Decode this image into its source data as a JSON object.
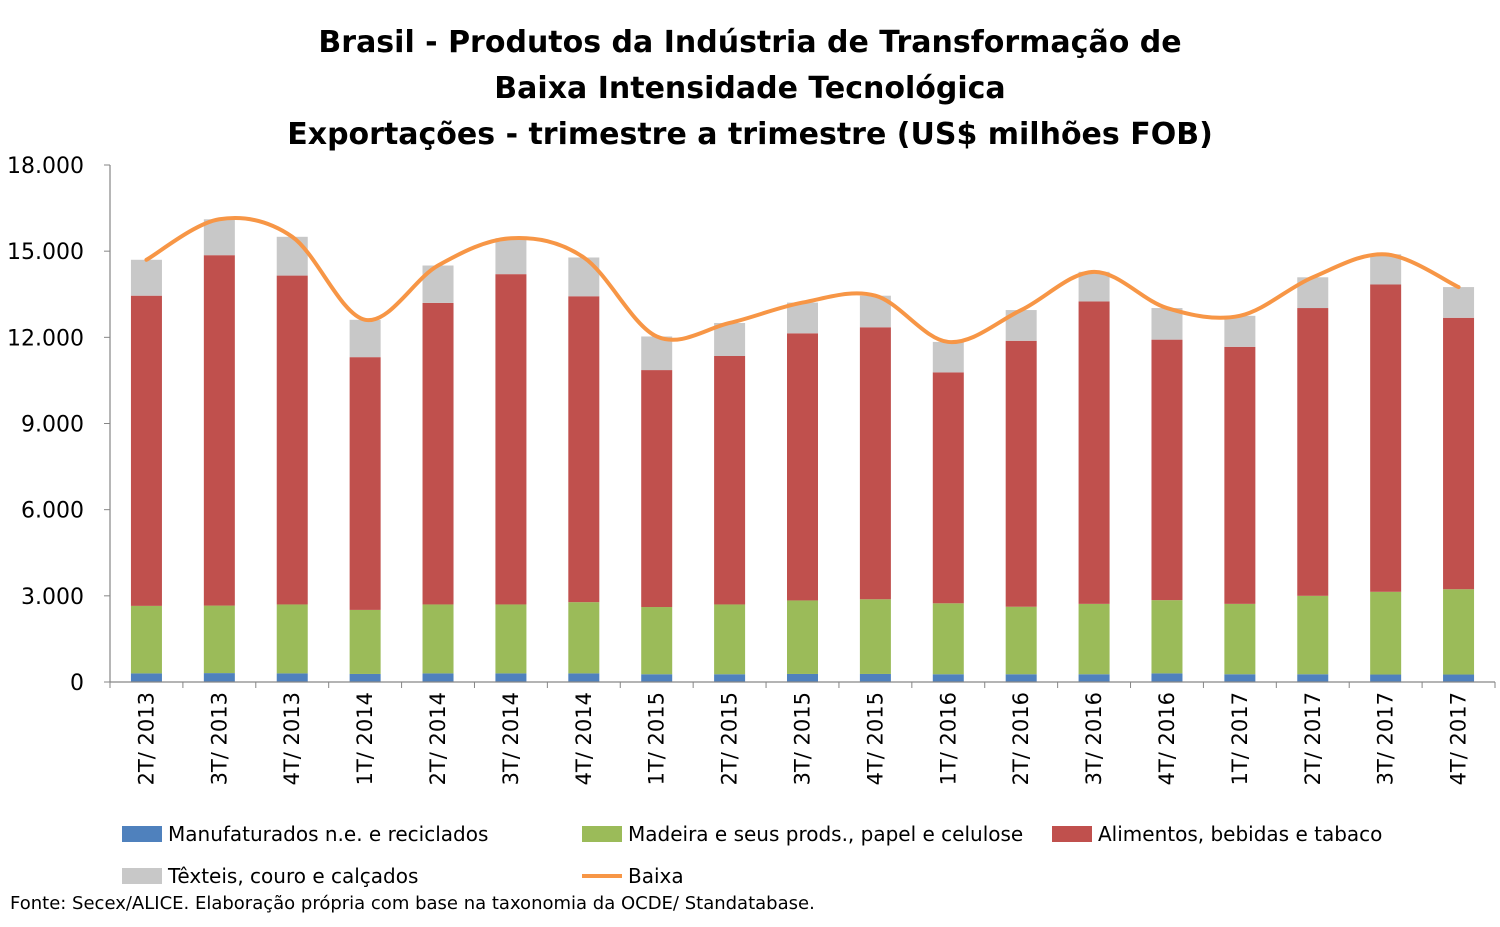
{
  "chart_data": {
    "type": "bar",
    "stacked": true,
    "title_lines": [
      "Brasil - Produtos da Indústria de Transformação de",
      "Baixa Intensidade Tecnológica",
      "Exportações - trimestre a trimestre (US$ milhões FOB)"
    ],
    "categories": [
      "2T/ 2013",
      "3T/ 2013",
      "4T/ 2013",
      "1T/ 2014",
      "2T/ 2014",
      "3T/ 2014",
      "4T/ 2014",
      "1T/ 2015",
      "2T/ 2015",
      "3T/ 2015",
      "4T/ 2015",
      "1T/ 2016",
      "2T/ 2016",
      "3T/ 2016",
      "4T/ 2016",
      "1T/ 2017",
      "2T/ 2017",
      "3T/ 2017",
      "4T/ 2017"
    ],
    "ylim": [
      0,
      18000
    ],
    "yticks": [
      0,
      3000,
      6000,
      9000,
      12000,
      15000,
      18000
    ],
    "ytick_labels": [
      "0",
      "3.000",
      "6.000",
      "9.000",
      "12.000",
      "15.000",
      "18.000"
    ],
    "series": [
      {
        "name": "Manufaturados n.e. e reciclados",
        "color": "#4f81bd",
        "kind": "bar",
        "values": [
          300,
          310,
          300,
          280,
          300,
          300,
          300,
          270,
          270,
          280,
          280,
          270,
          270,
          270,
          300,
          270,
          270,
          260,
          260
        ]
      },
      {
        "name": "Madeira e seus prods., papel e celulose",
        "color": "#9bbb59",
        "kind": "bar",
        "values": [
          2350,
          2350,
          2400,
          2230,
          2400,
          2400,
          2480,
          2340,
          2430,
          2560,
          2600,
          2470,
          2350,
          2450,
          2550,
          2450,
          2730,
          2880,
          2970
        ]
      },
      {
        "name": "Alimentos, bebidas e tabaco",
        "color": "#c0504d",
        "kind": "bar",
        "values": [
          10800,
          12200,
          11450,
          8800,
          10500,
          11500,
          10650,
          8250,
          8650,
          9300,
          9470,
          8040,
          9260,
          10530,
          9070,
          8950,
          10020,
          10700,
          9450
        ]
      },
      {
        "name": "Têxteis, couro e calçados",
        "color": "#c8c8c8",
        "kind": "bar",
        "values": [
          1250,
          1250,
          1350,
          1300,
          1300,
          1250,
          1350,
          1170,
          1150,
          1070,
          1100,
          1060,
          1070,
          1030,
          1100,
          1080,
          1070,
          1050,
          1070
        ]
      },
      {
        "name": "Baixa",
        "color": "#f79646",
        "kind": "line",
        "values": [
          14700,
          16110,
          15500,
          12610,
          14500,
          15450,
          14780,
          12030,
          12500,
          13210,
          13450,
          11840,
          12950,
          14280,
          13020,
          12750,
          14090,
          14890,
          13750
        ]
      }
    ],
    "legend_position": "bottom",
    "grid": false
  },
  "source_note": "Fonte: Secex/ALICE. Elaboração própria com base na taxonomia da OCDE/ Standatabase."
}
